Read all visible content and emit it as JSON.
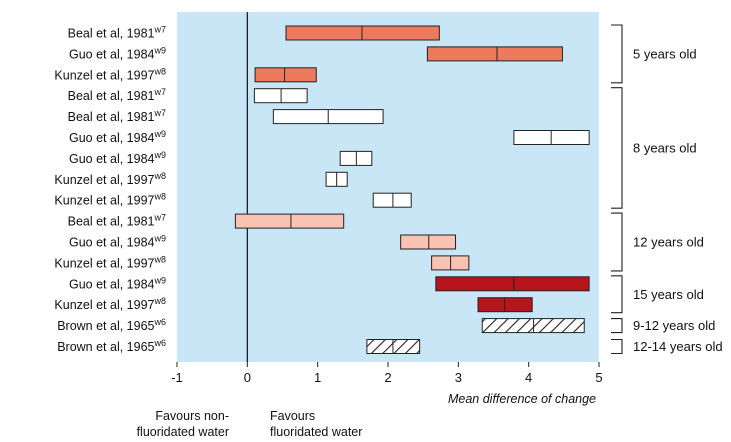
{
  "chart_data": {
    "type": "forest",
    "xlabel": "Mean difference of change",
    "xlim": [
      -1,
      5
    ],
    "x_ticks": [
      -1,
      0,
      1,
      2,
      3,
      4,
      5
    ],
    "reference_line": 0,
    "colors": {
      "plot_background": "#c8e6f6",
      "salmon": "#ee7a5d",
      "white": "#ffffff",
      "pink": "#f9c3b3",
      "darkred": "#b7141b",
      "hatched": "#ffffff",
      "stroke": "#222222"
    },
    "rows": [
      {
        "study": "Beal et al, 1981",
        "ref": "w7",
        "low": 0.55,
        "mean": 1.63,
        "high": 2.73,
        "style": "salmon"
      },
      {
        "study": "Guo et al, 1984",
        "ref": "w9",
        "low": 2.56,
        "mean": 3.55,
        "high": 4.48,
        "style": "salmon"
      },
      {
        "study": "Kunzel et al, 1997",
        "ref": "w8",
        "low": 0.11,
        "mean": 0.53,
        "high": 0.98,
        "style": "salmon"
      },
      {
        "study": "Beal et al, 1981",
        "ref": "w7",
        "low": 0.1,
        "mean": 0.48,
        "high": 0.85,
        "style": "white"
      },
      {
        "study": "Beal et al, 1981",
        "ref": "w7",
        "low": 0.37,
        "mean": 1.15,
        "high": 1.93,
        "style": "white"
      },
      {
        "study": "Guo et al, 1984",
        "ref": "w9",
        "low": 3.79,
        "mean": 4.32,
        "high": 4.86,
        "style": "white"
      },
      {
        "study": "Guo et al, 1984",
        "ref": "w9",
        "low": 1.32,
        "mean": 1.55,
        "high": 1.77,
        "style": "white"
      },
      {
        "study": "Kunzel et al, 1997",
        "ref": "w8",
        "low": 1.12,
        "mean": 1.27,
        "high": 1.42,
        "style": "white"
      },
      {
        "study": "Kunzel et al, 1997",
        "ref": "w8",
        "low": 1.79,
        "mean": 2.07,
        "high": 2.33,
        "style": "white"
      },
      {
        "study": "Beal et al, 1981",
        "ref": "w7",
        "low": -0.17,
        "mean": 0.62,
        "high": 1.37,
        "style": "pink"
      },
      {
        "study": "Guo et al, 1984",
        "ref": "w9",
        "low": 2.18,
        "mean": 2.58,
        "high": 2.96,
        "style": "pink"
      },
      {
        "study": "Kunzel et al, 1997",
        "ref": "w8",
        "low": 2.62,
        "mean": 2.89,
        "high": 3.15,
        "style": "pink"
      },
      {
        "study": "Guo et al, 1984",
        "ref": "w9",
        "low": 2.68,
        "mean": 3.79,
        "high": 4.86,
        "style": "darkred"
      },
      {
        "study": "Kunzel et al, 1997",
        "ref": "w8",
        "low": 3.28,
        "mean": 3.66,
        "high": 4.05,
        "style": "darkred"
      },
      {
        "study": "Brown et al, 1965",
        "ref": "w6",
        "low": 3.34,
        "mean": 4.07,
        "high": 4.79,
        "style": "hatched"
      },
      {
        "study": "Brown et al, 1965",
        "ref": "w6",
        "low": 1.7,
        "mean": 2.07,
        "high": 2.45,
        "style": "hatched"
      }
    ],
    "groups": [
      {
        "label": "5 years old",
        "first": 0,
        "last": 2
      },
      {
        "label": "8 years old",
        "first": 3,
        "last": 8
      },
      {
        "label": "12 years old",
        "first": 9,
        "last": 11
      },
      {
        "label": "15 years old",
        "first": 12,
        "last": 13
      },
      {
        "label": "9-12 years old",
        "first": 14,
        "last": 14
      },
      {
        "label": "12-14 years old",
        "first": 15,
        "last": 15
      }
    ],
    "side_notes": {
      "left_line1": "Favours non-",
      "left_line2": "fluoridated water",
      "right_line1": "Favours",
      "right_line2": "fluoridated water"
    }
  }
}
